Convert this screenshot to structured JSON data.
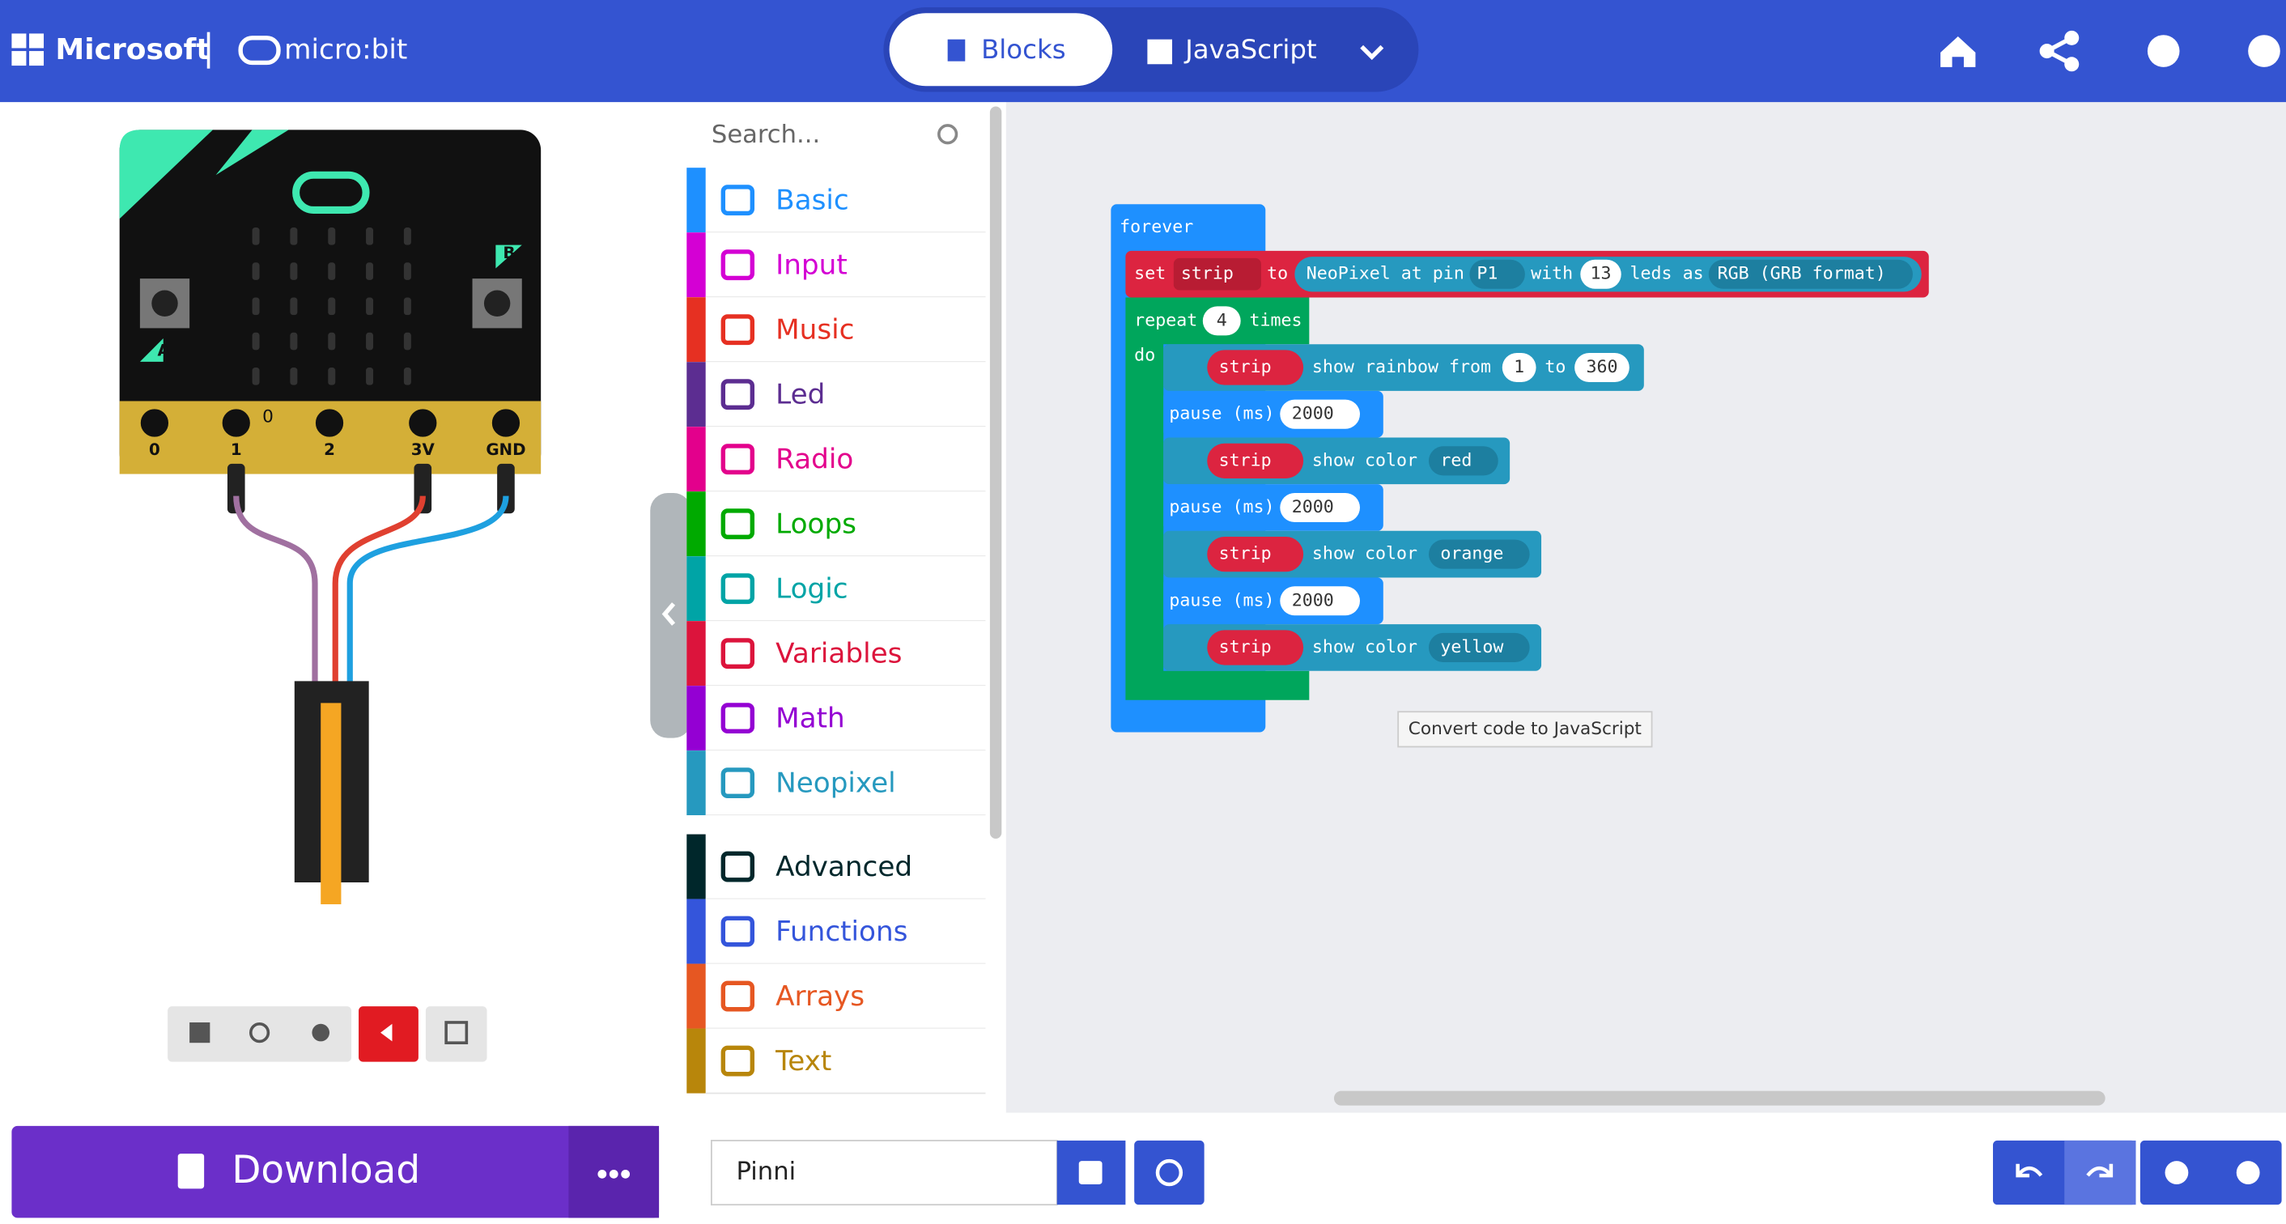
{
  "header": {
    "brand": "Microsoft",
    "product": "micro:bit",
    "tabs": [
      "Blocks",
      "JavaScript"
    ]
  },
  "simulator": {
    "pins": [
      "0",
      "1",
      "2",
      "3V",
      "GND"
    ],
    "pin_value": "0",
    "buttons": [
      "A",
      "B"
    ]
  },
  "toolbox": {
    "search": "Search...",
    "categories": [
      {
        "label": "Basic",
        "color": "#1e90ff"
      },
      {
        "label": "Input",
        "color": "#d400d4"
      },
      {
        "label": "Music",
        "color": "#e63022"
      },
      {
        "label": "Led",
        "color": "#5c2d91"
      },
      {
        "label": "Radio",
        "color": "#e3008c"
      },
      {
        "label": "Loops",
        "color": "#00aa00"
      },
      {
        "label": "Logic",
        "color": "#00a4a6"
      },
      {
        "label": "Variables",
        "color": "#dc143c"
      },
      {
        "label": "Math",
        "color": "#9400d3"
      },
      {
        "label": "Neopixel",
        "color": "#2699bf"
      }
    ],
    "advanced": {
      "label": "Advanced",
      "color": "#00272b"
    },
    "advanced_categories": [
      {
        "label": "Functions",
        "color": "#3455db"
      },
      {
        "label": "Arrays",
        "color": "#e65722"
      },
      {
        "label": "Text",
        "color": "#b8860b"
      }
    ]
  },
  "workspace": {
    "forever": "forever",
    "set_block": [
      "set",
      "strip",
      "to",
      "NeoPixel at pin",
      "P1",
      "with",
      "13",
      "leds as",
      "RGB (GRB format)"
    ],
    "repeat": [
      "repeat",
      "4",
      "times",
      "do"
    ],
    "statements": [
      [
        "strip",
        "show rainbow from",
        "1",
        "to",
        "360"
      ],
      [
        "pause (ms)",
        "2000"
      ],
      [
        "strip",
        "show color",
        "red"
      ],
      [
        "pause (ms)",
        "2000"
      ],
      [
        "strip",
        "show color",
        "orange"
      ],
      [
        "pause (ms)",
        "2000"
      ],
      [
        "strip",
        "show color",
        "yellow"
      ]
    ],
    "tooltip": "Convert code to JavaScript"
  },
  "footer": {
    "download": "Download",
    "project_name": "Pinni"
  }
}
